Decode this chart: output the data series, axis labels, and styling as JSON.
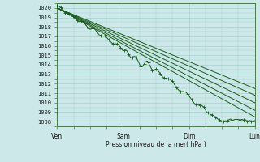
{
  "title": "",
  "xlabel": "Pression niveau de la mer( hPa )",
  "ylabel": "",
  "xlim": [
    0,
    72
  ],
  "ylim": [
    1007.5,
    1020.5
  ],
  "yticks": [
    1008,
    1009,
    1010,
    1011,
    1012,
    1013,
    1014,
    1015,
    1016,
    1017,
    1018,
    1019,
    1020
  ],
  "xtick_labels": [
    "Ven",
    "Sam",
    "Dim",
    "Lun"
  ],
  "xtick_positions": [
    0,
    24,
    48,
    72
  ],
  "bg_color": "#cce8e8",
  "grid_color": "#99cccc",
  "line_color": "#1a5c1a",
  "n_lines": 5
}
